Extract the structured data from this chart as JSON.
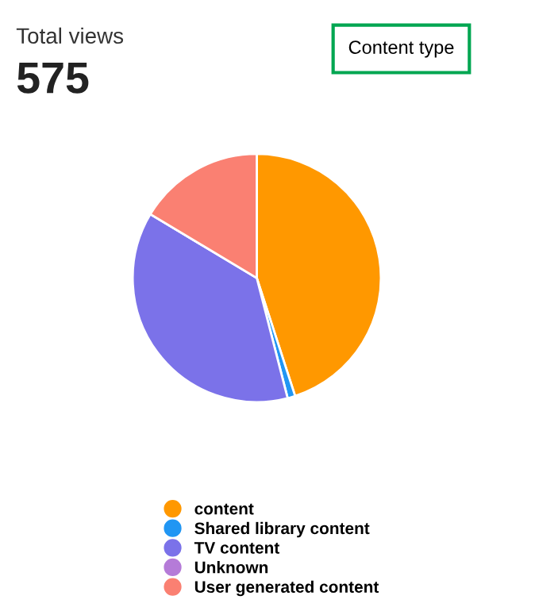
{
  "chart_data": {
    "type": "pie",
    "title": "Total views",
    "subtitle": "575",
    "annotations": [
      "Content type"
    ],
    "categories": [
      "content",
      "Shared library content",
      "TV content",
      "Unknown",
      "User generated content"
    ],
    "values": [
      45,
      1,
      37.6,
      0,
      16.4
    ],
    "colors": [
      "#ff9800",
      "#2196f3",
      "#7b72e9",
      "#b57bd8",
      "#fa8072"
    ],
    "legend": "bottom"
  }
}
